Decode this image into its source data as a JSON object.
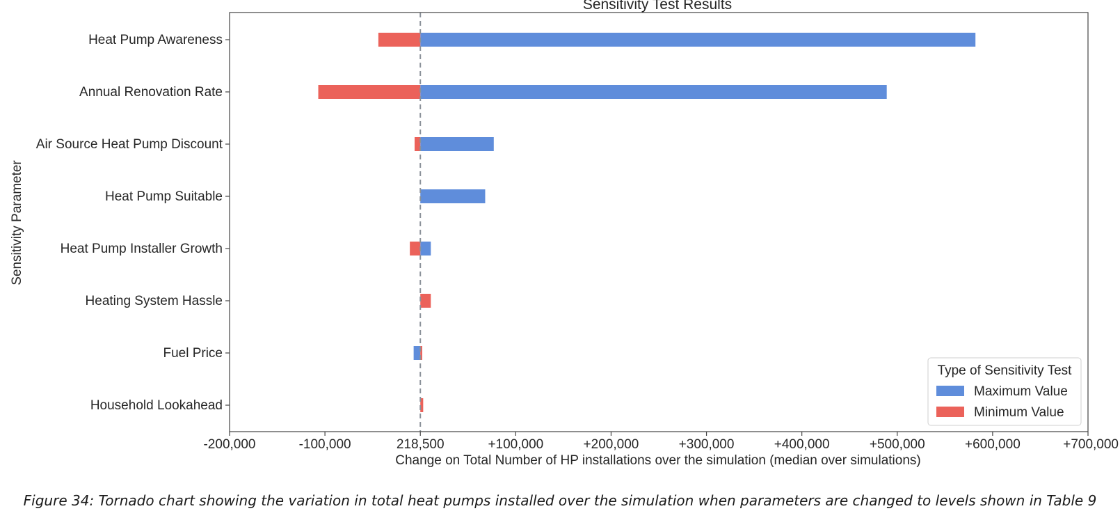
{
  "chart_data": {
    "type": "bar",
    "orientation": "horizontal",
    "title": "Sensitivity Test Results",
    "xlabel": "Change on Total Number of HP installations over the simulation (median over simulations)",
    "ylabel": "Sensitivity Parameter",
    "baseline": 0,
    "xlim": [
      -200000,
      700000
    ],
    "x_ticks": [
      -200000,
      -100000,
      0,
      100000,
      200000,
      300000,
      400000,
      500000,
      600000,
      700000
    ],
    "x_tick_labels": [
      "-200,000",
      "-100,000",
      "218,500",
      "+100,000",
      "+200,000",
      "+300,000",
      "+400,000",
      "+500,000",
      "+600,000",
      "+700,000"
    ],
    "categories": [
      "Heat Pump Awareness",
      "Annual Renovation Rate",
      "Air Source Heat Pump Discount",
      "Heat Pump Suitable",
      "Heat Pump Installer Growth",
      "Heating System Hassle",
      "Fuel Price",
      "Household Lookahead"
    ],
    "series": [
      {
        "name": "Maximum Value",
        "color": "#5f8ddb",
        "values": [
          582000,
          489000,
          77000,
          68000,
          11000,
          0,
          -7000,
          0
        ]
      },
      {
        "name": "Minimum Value",
        "color": "#eb625a",
        "values": [
          -44000,
          -107000,
          -6000,
          0,
          -11000,
          11000,
          2000,
          3000
        ]
      }
    ],
    "legend": {
      "title": "Type of Sensitivity Test",
      "position": "bottom-right"
    },
    "grid": false,
    "reference_line": {
      "style": "dashed",
      "color": "#8a9199"
    }
  },
  "caption": "Figure 34: Tornado chart showing the variation in total heat pumps installed over the simulation when parameters are changed to levels shown in Table 9"
}
